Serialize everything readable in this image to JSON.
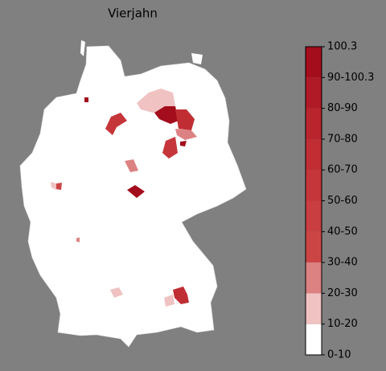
{
  "title": "Vierjahn",
  "colorbar": {
    "ticks": [
      "0-10",
      "10-20",
      "20-30",
      "30-40",
      "40-50",
      "50-60",
      "60-70",
      "70-80",
      "80-90",
      "90-100.3",
      "100.3"
    ],
    "colors": [
      "#ffffff",
      "#f0c2c2",
      "#dc8282",
      "#cc4545",
      "#c93e41",
      "#c5363a",
      "#c02e34",
      "#b9242d",
      "#b01a26",
      "#a30d1c"
    ]
  }
}
